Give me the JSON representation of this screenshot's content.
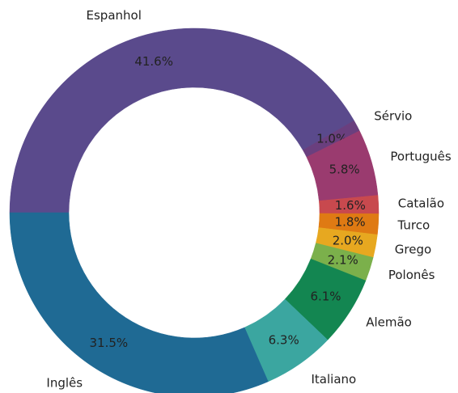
{
  "chart_data": {
    "type": "pie",
    "categories": [
      "Espanhol",
      "Sérvio",
      "Português",
      "Catalão",
      "Turco",
      "Grego",
      "Polonês",
      "Alemão",
      "Italiano",
      "Inglês"
    ],
    "values": [
      41.6,
      1.0,
      5.8,
      1.6,
      1.8,
      2.0,
      2.1,
      6.1,
      6.3,
      31.5
    ],
    "value_labels": [
      "41.6%",
      "1.0%",
      "5.8%",
      "1.6%",
      "1.8%",
      "2.0%",
      "2.1%",
      "6.1%",
      "6.3%",
      "31.5%"
    ],
    "colors": [
      "#5a4a8c",
      "#6a3f7e",
      "#9a3b6f",
      "#c8494e",
      "#df7a13",
      "#e7a820",
      "#7bb04b",
      "#138651",
      "#3ba6a0",
      "#1f6a94"
    ]
  }
}
